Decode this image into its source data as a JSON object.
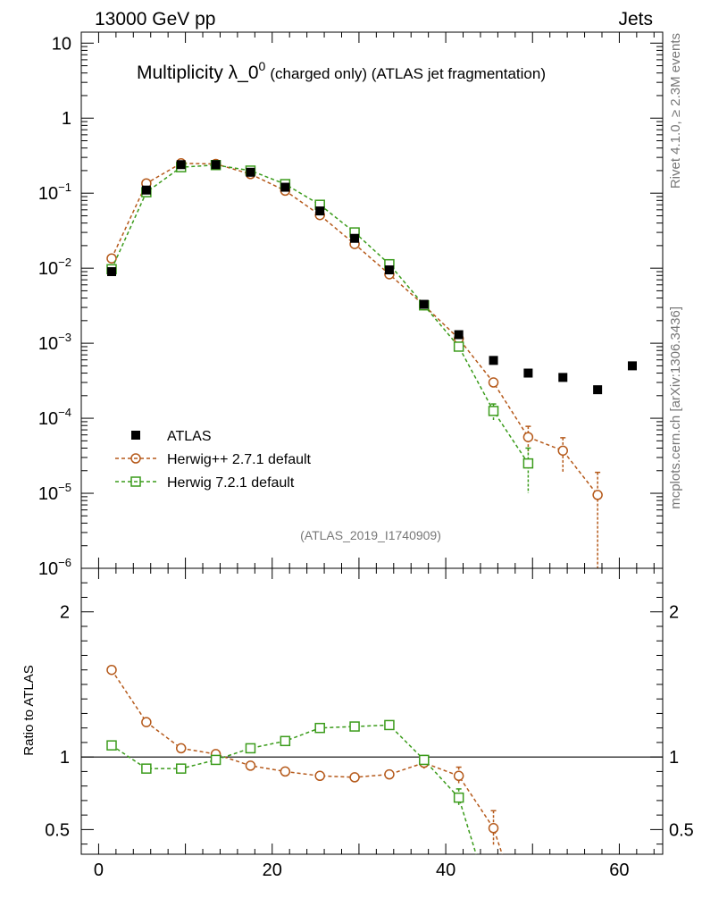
{
  "header": {
    "left": "13000 GeV pp",
    "right": "Jets"
  },
  "side_labels": {
    "rivet": "Rivet 4.1.0, ≥ 2.3M events",
    "mcplots": "mcplots.cern.ch [arXiv:1306.3436]"
  },
  "chart_data": [
    {
      "type": "scatter",
      "panel": "main",
      "title_parts": {
        "main": "Multiplicity λ_0",
        "superscript": "0",
        "note": "(charged only) (ATLAS jet fragmentation)"
      },
      "analysis_id": "(ATLAS_2019_I1740909)",
      "yscale": "log",
      "xlim": [
        -2,
        65
      ],
      "ylim": [
        1e-06,
        14
      ],
      "yticks": [
        {
          "value": 10,
          "label": "10"
        },
        {
          "value": 1,
          "label": "1"
        },
        {
          "value": 0.1,
          "label": "10",
          "exp": "−1"
        },
        {
          "value": 0.01,
          "label": "10",
          "exp": "−2"
        },
        {
          "value": 0.001,
          "label": "10",
          "exp": "−3"
        },
        {
          "value": 0.0001,
          "label": "10",
          "exp": "−4"
        },
        {
          "value": 1e-05,
          "label": "10",
          "exp": "−5"
        },
        {
          "value": 1e-06,
          "label": "10",
          "exp": "−6"
        }
      ],
      "series": [
        {
          "name": "ATLAS",
          "color": "#000000",
          "marker": "filled-square",
          "x": [
            1.5,
            5.5,
            9.5,
            13.5,
            17.5,
            21.5,
            25.5,
            29.5,
            33.5,
            37.5,
            41.5,
            45.5,
            49.5,
            53.5,
            57.5,
            61.5
          ],
          "y": [
            0.009,
            0.11,
            0.24,
            0.24,
            0.19,
            0.12,
            0.058,
            0.025,
            0.0095,
            0.0033,
            0.0013,
            0.00059,
            0.0004,
            0.00035,
            0.00024,
            0.0005
          ]
        },
        {
          "name": "Herwig++ 2.7.1 default",
          "color": "#b5591a",
          "marker": "open-circle",
          "x": [
            1.5,
            5.5,
            9.5,
            13.5,
            17.5,
            21.5,
            25.5,
            29.5,
            33.5,
            37.5,
            41.5,
            45.5,
            49.5,
            53.5,
            57.5,
            61.5
          ],
          "y": [
            0.0135,
            0.135,
            0.25,
            0.245,
            0.18,
            0.108,
            0.051,
            0.021,
            0.0083,
            0.0032,
            0.00115,
            0.0003,
            5.6e-05,
            3.7e-05,
            9.5e-06,
            null
          ],
          "yerr": [
            0,
            0,
            0,
            0,
            0,
            0,
            0,
            0,
            0,
            0,
            0,
            3e-05,
            2.2e-05,
            1.8e-05,
            9.5e-06,
            null
          ]
        },
        {
          "name": "Herwig 7.2.1 default",
          "color": "#3a9b1a",
          "marker": "open-square",
          "x": [
            1.5,
            5.5,
            9.5,
            13.5,
            17.5,
            21.5,
            25.5,
            29.5,
            33.5,
            37.5,
            41.5,
            45.5,
            49.5
          ],
          "y": [
            0.0097,
            0.103,
            0.222,
            0.237,
            0.2,
            0.132,
            0.07,
            0.03,
            0.0113,
            0.0032,
            0.0009,
            0.000125,
            2.5e-05
          ],
          "yerr": [
            0,
            0,
            0,
            0,
            0,
            0,
            0,
            0,
            0,
            0,
            0,
            3e-05,
            1.5e-05
          ]
        }
      ],
      "legend": {
        "position": "lower-left",
        "entries": [
          "ATLAS",
          "Herwig++ 2.7.1 default",
          "Herwig 7.2.1 default"
        ]
      }
    },
    {
      "type": "scatter",
      "panel": "ratio",
      "ylabel": "Ratio to ATLAS",
      "xlim": [
        -2,
        65
      ],
      "ylim": [
        0.33,
        2.3
      ],
      "yticks": [
        {
          "value": 2,
          "label": "2"
        },
        {
          "value": 1,
          "label": "1"
        },
        {
          "value": 0.5,
          "label": "0.5"
        }
      ],
      "xticks": [
        {
          "value": 0,
          "label": "0"
        },
        {
          "value": 20,
          "label": "20"
        },
        {
          "value": 40,
          "label": "40"
        },
        {
          "value": 60,
          "label": "60"
        }
      ],
      "reference_line": 1,
      "series": [
        {
          "name": "Herwig++ 2.7.1 default",
          "color": "#b5591a",
          "marker": "open-circle",
          "x": [
            1.5,
            5.5,
            9.5,
            13.5,
            17.5,
            21.5,
            25.5,
            29.5,
            33.5,
            37.5,
            41.5,
            45.5
          ],
          "y": [
            1.6,
            1.24,
            1.06,
            1.02,
            0.94,
            0.9,
            0.87,
            0.86,
            0.88,
            0.96,
            0.87,
            0.51
          ],
          "yerr": [
            0,
            0,
            0,
            0,
            0,
            0,
            0,
            0,
            0,
            0.04,
            0.06,
            0.12
          ],
          "exit": {
            "x": 46.5,
            "y": 0.33
          }
        },
        {
          "name": "Herwig 7.2.1 default",
          "color": "#3a9b1a",
          "marker": "open-square",
          "x": [
            1.5,
            5.5,
            9.5,
            13.5,
            17.5,
            21.5,
            25.5,
            29.5,
            33.5,
            37.5,
            41.5
          ],
          "y": [
            1.08,
            0.92,
            0.92,
            0.98,
            1.06,
            1.11,
            1.2,
            1.21,
            1.22,
            0.98,
            0.72
          ],
          "yerr": [
            0,
            0,
            0,
            0,
            0,
            0,
            0,
            0,
            0,
            0.03,
            0.06
          ],
          "exit": {
            "x": 43.5,
            "y": 0.33
          }
        }
      ]
    }
  ]
}
